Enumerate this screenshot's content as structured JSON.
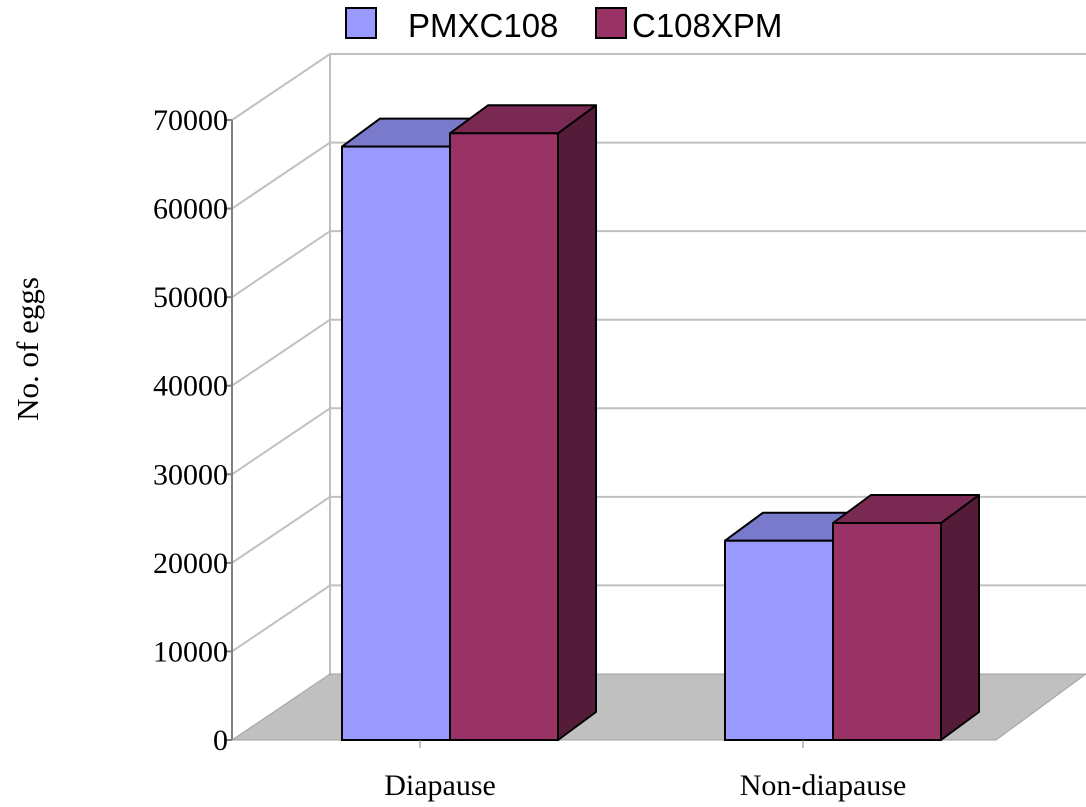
{
  "colors": {
    "PMXC108": "#9999ff",
    "C108XPM": "#993366",
    "floor": "#c0c0c0",
    "gridline": "#c0c0c0"
  },
  "chart_data": {
    "type": "bar",
    "style": "3d-clustered-column",
    "categories": [
      "Diapause",
      "Non-diapause"
    ],
    "series": [
      {
        "name": "PMXC108",
        "values": [
          67000,
          22500
        ]
      },
      {
        "name": "C108XPM",
        "values": [
          68500,
          24500
        ]
      }
    ],
    "title": "",
    "xlabel": "",
    "ylabel": "No. of eggs",
    "ylim": [
      0,
      70000
    ],
    "yticks": [
      0,
      10000,
      20000,
      30000,
      40000,
      50000,
      60000,
      70000
    ],
    "grid": true,
    "legend_position": "top"
  }
}
